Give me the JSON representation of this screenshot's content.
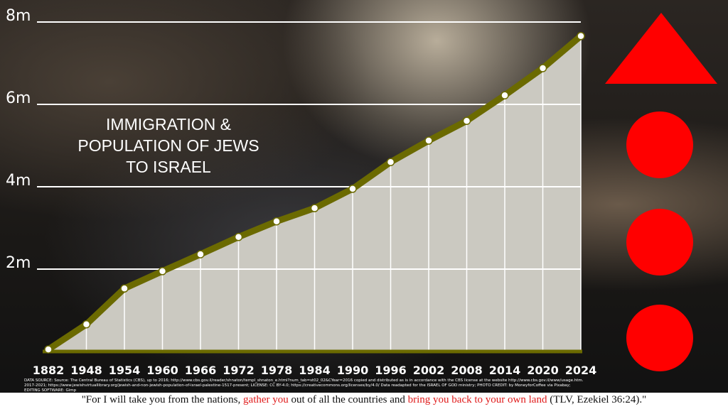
{
  "chart_data": {
    "type": "area",
    "title": "IMMIGRATION & POPULATION OF JEWS TO ISRAEL",
    "categories": [
      "1882",
      "1948",
      "1954",
      "1960",
      "1966",
      "1972",
      "1978",
      "1984",
      "1990",
      "1996",
      "2002",
      "2008",
      "2014",
      "2020",
      "2024"
    ],
    "values": [
      0.05,
      0.66,
      1.53,
      1.95,
      2.36,
      2.78,
      3.16,
      3.48,
      3.95,
      4.6,
      5.12,
      5.6,
      6.22,
      6.88,
      7.66
    ],
    "line_color": "#6b6a00",
    "fill_color": "#cbc9c1",
    "ylim": [
      0,
      8
    ],
    "yticks": [
      {
        "value": 2,
        "label": "2m"
      },
      {
        "value": 4,
        "label": "4m"
      },
      {
        "value": 6,
        "label": "6m"
      },
      {
        "value": 8,
        "label": "8m"
      }
    ],
    "grid": true
  },
  "source": "DATA SOURCE: Source: The Central Bureau of Statistics (CBS), up to 2016; http://www.cbs.gov.il/reader/shnaton/templ_shnaton_e.html?num_tab=st02_02&CYear=2016 copied and distributed as is in accordance with the CBS license at the website http://www.cbs.gov.il/www/usage.htm. 2017-2021; https://www.jewishvirtuallibrary.org/jewish-and-non-jewish-population-of-israel-palestine-1517-present; LICENSE: CC BY-4.0; https://creativecommons.org/licenses/by/4.0/ Data readapted for the ISRAEL OF GOD ministry; PHOTO CREDIT: by MoneyforCoffee via Pixabay; EDITING SOFTWARE: Gimp",
  "quote": {
    "parts": [
      "\"For I will take you from the nations, ",
      "gather you",
      " out of all the countries and ",
      "bring you back to your own land",
      " (TLV, Ezekiel 36:24).\""
    ]
  }
}
